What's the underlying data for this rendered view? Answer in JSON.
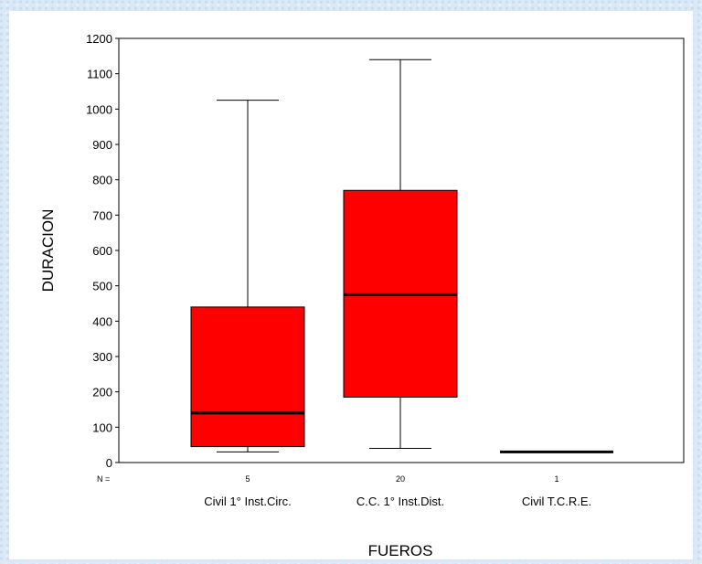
{
  "chart_data": {
    "type": "boxplot",
    "title": "",
    "xlabel": "FUEROS",
    "ylabel": "DURACION",
    "ylim": [
      0,
      1200
    ],
    "yticks": [
      0,
      100,
      200,
      300,
      400,
      500,
      600,
      700,
      800,
      900,
      1000,
      1100,
      1200
    ],
    "n_prefix": "N =",
    "box_color": "#ff0000",
    "categories": [
      "Civil 1° Inst.Circ.",
      "C.C. 1° Inst.Dist.",
      "Civil T.C.R.E."
    ],
    "n": [
      "5",
      "20",
      "1"
    ],
    "boxes": [
      {
        "min": 30,
        "q1": 45,
        "median": 140,
        "q3": 440,
        "max": 1025
      },
      {
        "min": 40,
        "q1": 185,
        "median": 475,
        "q3": 770,
        "max": 1140
      },
      {
        "min": 30,
        "q1": 30,
        "median": 30,
        "q3": 30,
        "max": 30
      }
    ]
  }
}
